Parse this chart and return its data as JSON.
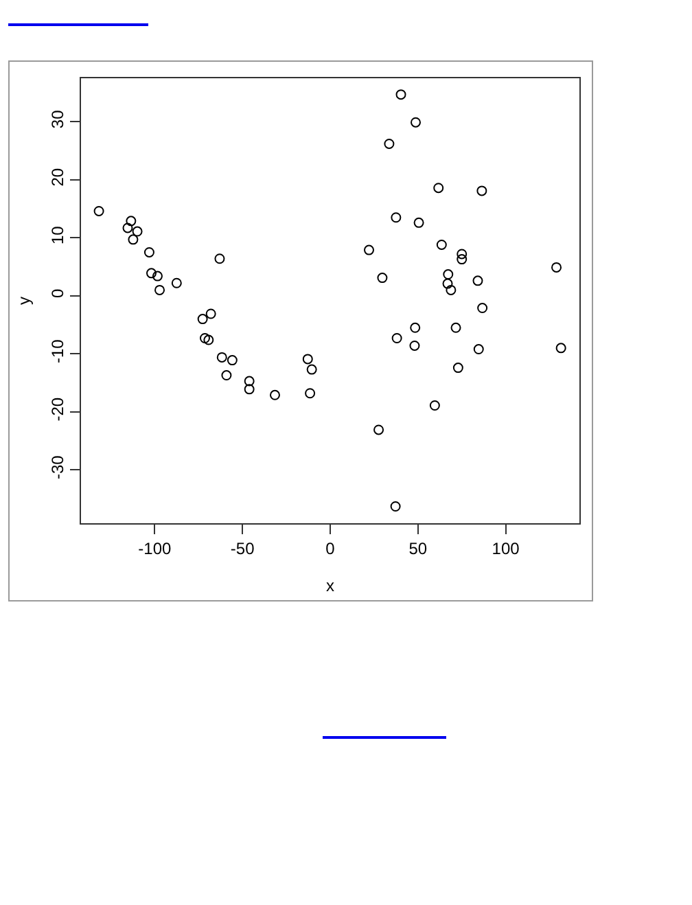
{
  "chart_data": {
    "type": "scatter",
    "xlabel": "x",
    "ylabel": "y",
    "color": "#000000",
    "marker": "circle",
    "x": [
      -131.8,
      -113.5,
      -115.4,
      -109.9,
      -112.3,
      -103.1,
      -101.9,
      -98.4,
      -97.2,
      -87.5,
      -63.0,
      -72.7,
      -68.0,
      -71.4,
      -69.3,
      -61.7,
      -55.8,
      -59.1,
      -46.1,
      -46.1,
      -31.5,
      -12.8,
      -10.5,
      -11.5,
      40.3,
      48.7,
      33.6,
      61.7,
      86.4,
      37.5,
      50.5,
      63.5,
      22.1,
      75.0,
      75.0,
      128.9,
      67.2,
      29.7,
      84.1,
      66.9,
      68.8,
      86.7,
      48.4,
      71.6,
      38.0,
      48.1,
      84.6,
      131.5,
      72.9,
      59.6,
      27.6,
      37.2
    ],
    "values": [
      14.6,
      12.9,
      11.7,
      11.1,
      9.7,
      7.5,
      3.9,
      3.4,
      1.0,
      2.2,
      6.4,
      -4.0,
      -3.1,
      -7.3,
      -7.6,
      -10.6,
      -11.1,
      -13.7,
      -14.7,
      -16.1,
      -17.1,
      -10.9,
      -12.7,
      -16.8,
      34.7,
      29.9,
      26.2,
      18.6,
      18.1,
      13.5,
      12.6,
      8.8,
      7.9,
      7.2,
      6.3,
      4.9,
      3.7,
      3.1,
      2.6,
      2.1,
      1.0,
      -2.1,
      -5.5,
      -5.5,
      -7.3,
      -8.6,
      -9.2,
      -9.0,
      -12.4,
      -18.9,
      -23.1,
      -36.3
    ],
    "xlim": [
      -142,
      142
    ],
    "ylim": [
      -39.2,
      37.5
    ],
    "xticks": [
      -100,
      -50,
      0,
      50,
      100
    ],
    "yticks": [
      -30,
      -20,
      -10,
      0,
      10,
      20,
      30
    ]
  }
}
